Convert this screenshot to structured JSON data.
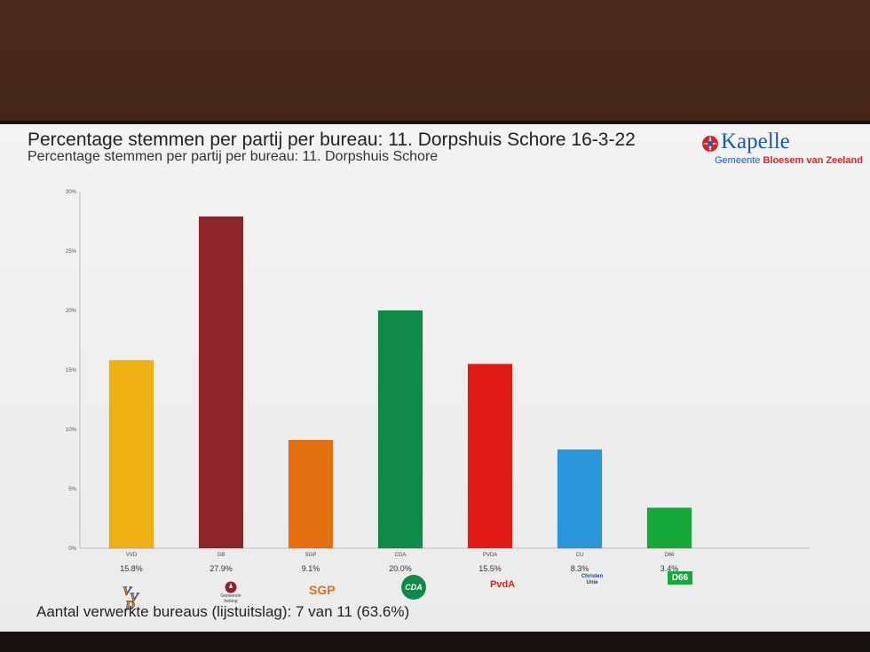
{
  "header": {
    "title": "Percentage stemmen per partij per bureau:  11. Dorpshuis Schore 16-3-22",
    "subtitle": "Percentage stemmen per partij per bureau:  11. Dorpshuis Schore"
  },
  "logo": {
    "name": "Kapelle",
    "tag_a": "Gemeente",
    "tag_b": "Bloesem van Zeeland"
  },
  "chart_data": {
    "type": "bar",
    "title": "Percentage stemmen per partij per bureau:  11. Dorpshuis Schore 16-3-22",
    "categories": [
      "VVD",
      "GB",
      "SGP",
      "CDA",
      "PVDA",
      "CU",
      "D66"
    ],
    "values": [
      15.8,
      27.9,
      9.1,
      20.0,
      15.5,
      8.3,
      3.4
    ],
    "value_labels": [
      "15.8%",
      "27.9%",
      "9.1%",
      "20.0%",
      "15.5%",
      "8.3%",
      "3.4%"
    ],
    "colors": [
      "#efb013",
      "#8e242b",
      "#e5700f",
      "#0f8a48",
      "#e31b17",
      "#2b95dc",
      "#16a83a"
    ],
    "ylim": [
      0,
      30
    ],
    "yticks": [
      "0%",
      "5%",
      "10%",
      "15%",
      "20%",
      "25%",
      "30%"
    ],
    "grid": false,
    "legend": "none"
  },
  "party_logos": {
    "vvd": "VVD",
    "gb_line1": "Gemeente",
    "gb_line2": "belang",
    "sgp": "SGP",
    "cda": "CDA",
    "pvda": "PvdA",
    "cu_line1": "Christen",
    "cu_line2": "Unie",
    "d66": "D66"
  },
  "footer": {
    "text": "Aantal verwerkte bureaus (lijstuitslag): 7 van 11 (63.6%)"
  }
}
